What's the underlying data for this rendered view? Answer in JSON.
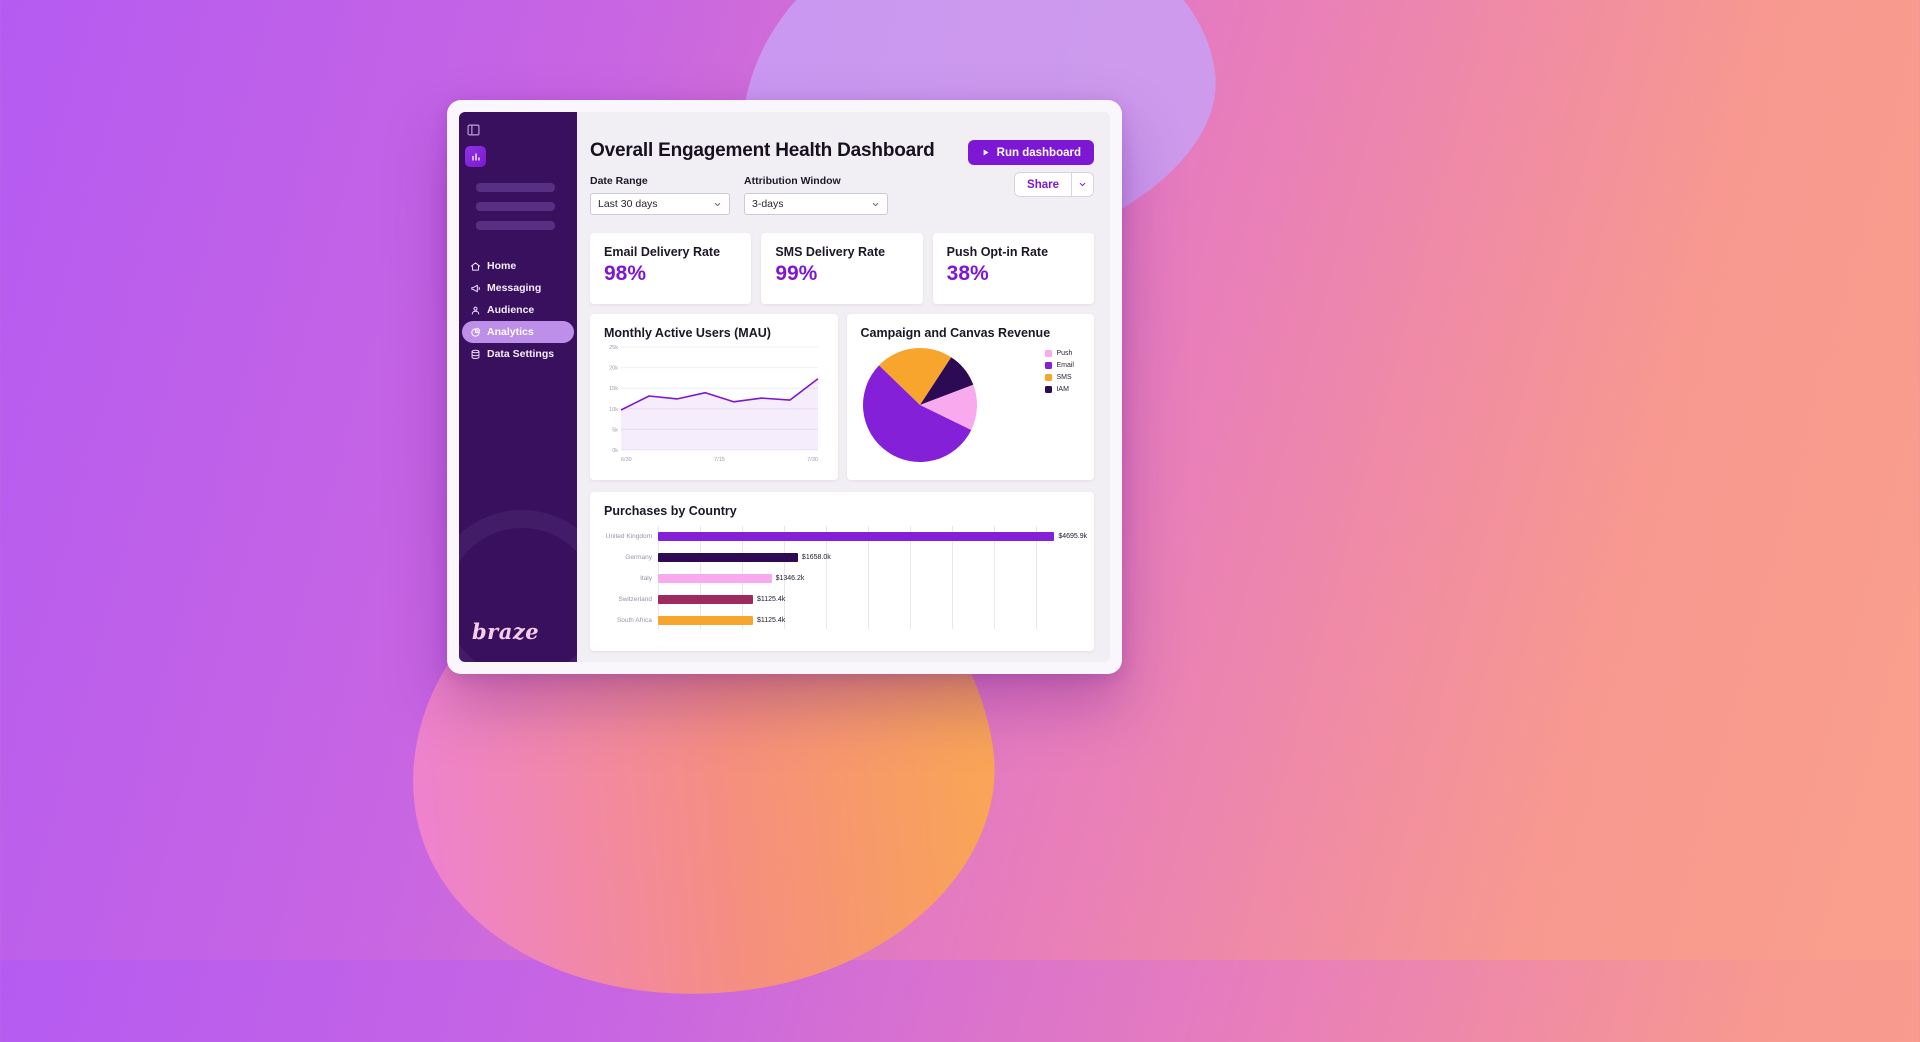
{
  "theme": {
    "accent": "#7d17d4",
    "sidebar_bg": "#38105e",
    "active_pill": "#bd8fe8",
    "content_bg": "#f2eff4"
  },
  "sidebar": {
    "logo": "braze",
    "nav": [
      {
        "label": "Home",
        "icon": "home-icon",
        "active": false
      },
      {
        "label": "Messaging",
        "icon": "messaging-icon",
        "active": false
      },
      {
        "label": "Audience",
        "icon": "audience-icon",
        "active": false
      },
      {
        "label": "Analytics",
        "icon": "analytics-icon",
        "active": true
      },
      {
        "label": "Data Settings",
        "icon": "data-settings-icon",
        "active": false
      }
    ]
  },
  "header": {
    "title": "Overall Engagement Health Dashboard",
    "run_button": "Run dashboard",
    "share_button": "Share"
  },
  "filters": {
    "date_range": {
      "label": "Date Range",
      "value": "Last 30 days"
    },
    "attribution_window": {
      "label": "Attribution Window",
      "value": "3-days"
    }
  },
  "kpis": [
    {
      "title": "Email Delivery Rate",
      "value": "98%"
    },
    {
      "title": "SMS Delivery Rate",
      "value": "99%"
    },
    {
      "title": "Push Opt-in Rate",
      "value": "38%"
    }
  ],
  "chart_data": [
    {
      "type": "area",
      "title": "Monthly Active Users (MAU)",
      "x": [
        "6/30",
        "7/15",
        "7/30"
      ],
      "values": [
        9.7,
        13.1,
        12.4,
        13.9,
        11.7,
        12.6,
        12.1,
        17.3
      ],
      "unit": "k",
      "ylim": [
        0,
        25
      ],
      "yticks": [
        "25k",
        "20k",
        "15k",
        "10k",
        "5k",
        "0k"
      ],
      "line_color": "#7d17d4",
      "fill_color": "rgba(125,23,212,0.08)"
    },
    {
      "type": "pie",
      "title": "Campaign and Canvas Revenue",
      "slices": [
        {
          "label": "Push",
          "value": 13,
          "color": "#f9a9ee"
        },
        {
          "label": "Email",
          "value": 55,
          "color": "#8520d9"
        },
        {
          "label": "SMS",
          "value": 22,
          "color": "#f7a52d"
        },
        {
          "label": "IAM",
          "value": 10,
          "color": "#2d0a54"
        }
      ],
      "start_angle": -46,
      "draw_order": [
        2,
        3,
        0,
        1
      ],
      "legend_position": "right"
    },
    {
      "type": "bar",
      "title": "Purchases by Country",
      "orientation": "horizontal",
      "categories": [
        "United Kingdom",
        "Germany",
        "Italy",
        "Switzerland",
        "South Africa"
      ],
      "values": [
        4695.9,
        1658.0,
        1346.2,
        1125.4,
        1125.4
      ],
      "labels": [
        "$4695.9k",
        "$1658.0k",
        "$1346.2k",
        "$1125.4k",
        "$1125.4k"
      ],
      "colors": [
        "#8520d9",
        "#2d0a54",
        "#f9a9ee",
        "#9e2b5e",
        "#f7a52d"
      ],
      "xlim": [
        0,
        5000
      ],
      "grid": true
    }
  ]
}
